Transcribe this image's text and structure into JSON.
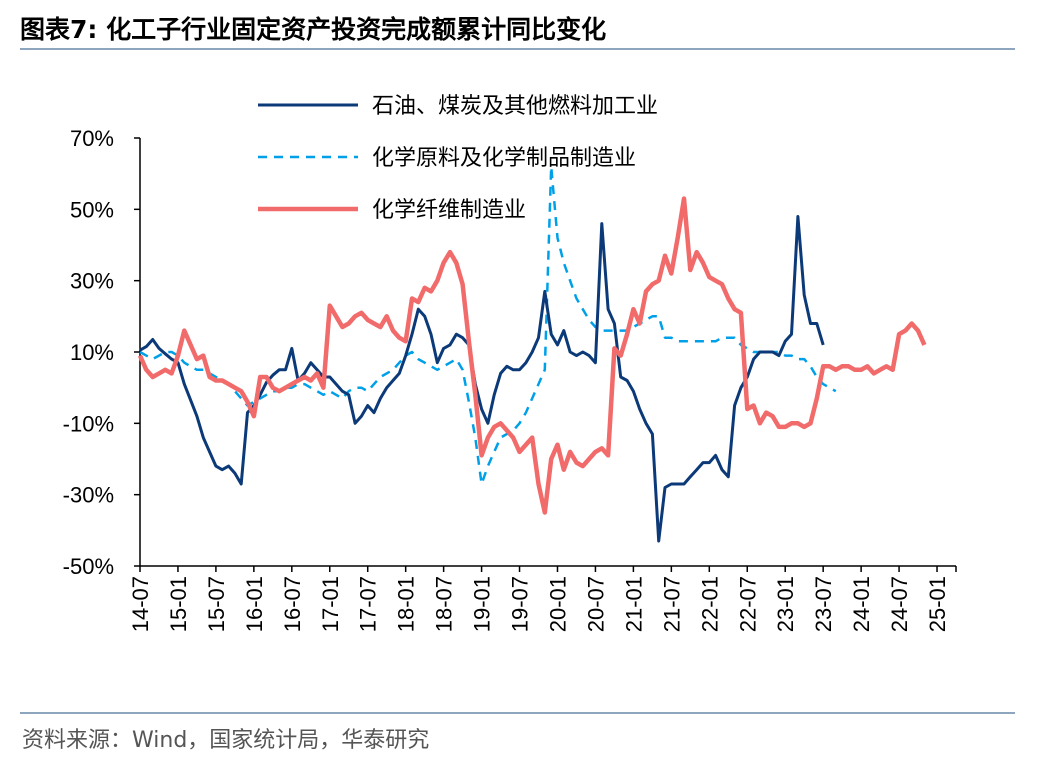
{
  "figure": {
    "title": "图表7:   化工子行业固定资产投资完成额累计同比变化",
    "source": "资料来源：Wind，国家统计局，华泰研究"
  },
  "chart_data": {
    "type": "line",
    "title": "",
    "xlabel": "",
    "ylabel": "",
    "ylim": [
      -50,
      70
    ],
    "y_ticks": [
      "70%",
      "50%",
      "30%",
      "10%",
      "-10%",
      "-30%",
      "-50%"
    ],
    "x_ticks": [
      "14-07",
      "15-01",
      "15-07",
      "16-01",
      "16-07",
      "17-01",
      "17-07",
      "18-01",
      "18-07",
      "19-01",
      "19-07",
      "20-01",
      "20-07",
      "21-01",
      "21-07",
      "22-01",
      "22-07",
      "23-01",
      "23-07",
      "24-01",
      "24-07",
      "25-01"
    ],
    "x_start": "2014-07",
    "legend_position": "top-left",
    "series": [
      {
        "name": "石油、煤炭及其他燃料加工业",
        "color": "#0c3a78",
        "style": "solid",
        "values": [
          10.5,
          11.5,
          13.5,
          11,
          9.5,
          8,
          7,
          1,
          -3.5,
          -8,
          -14,
          -18,
          -22,
          -23,
          -22,
          -24,
          -27,
          -7,
          -5,
          -2,
          1.5,
          3.5,
          5,
          5,
          11,
          2,
          4,
          7,
          5,
          3,
          3,
          1,
          -1,
          -2,
          -10,
          -8,
          -5,
          -7,
          -3,
          0,
          2,
          4,
          9,
          15,
          22,
          20,
          15,
          7,
          11,
          12,
          15,
          14,
          12,
          1,
          -6,
          -10,
          -2,
          4,
          6,
          5,
          5,
          7,
          10,
          14,
          27,
          15,
          12,
          16,
          10,
          9,
          10,
          9,
          7,
          46,
          22,
          18,
          3,
          2,
          -1,
          -6,
          -10,
          -13,
          -43,
          -28,
          -27,
          -27,
          -27,
          -25,
          -23,
          -21,
          -21,
          -19,
          -23,
          -25,
          -5,
          0,
          3,
          8,
          10,
          10,
          10,
          9,
          13,
          15,
          48,
          26,
          18,
          18,
          12
        ]
      },
      {
        "name": "化学原料及化学制品制造业",
        "color": "#00a0e9",
        "style": "dashed",
        "values": [
          10,
          9,
          8,
          9,
          10,
          10,
          9,
          7,
          6,
          5,
          5,
          4,
          3,
          2,
          1,
          -1,
          -3,
          -5,
          -4,
          -3,
          -2,
          -1,
          -1,
          0,
          0,
          1,
          1,
          0,
          -1,
          -2,
          -1,
          -2,
          -3,
          -1,
          0,
          0,
          -1,
          1,
          3,
          4,
          5,
          7,
          9,
          10,
          8,
          7,
          6,
          5,
          6,
          7,
          8,
          5,
          -4,
          -14,
          -27,
          -22,
          -18,
          -14,
          -13,
          -12,
          -10,
          -7,
          -3,
          1,
          5,
          62,
          42,
          35,
          30,
          25,
          22,
          19,
          17,
          16,
          16,
          16,
          16,
          16,
          17,
          18,
          19,
          20,
          20,
          14,
          14,
          13,
          13,
          13,
          13,
          13,
          13,
          13,
          14,
          14,
          14,
          12,
          11,
          10,
          10,
          10,
          10,
          10,
          9,
          9,
          8,
          8,
          6,
          3,
          1,
          0,
          -1
        ]
      },
      {
        "name": "化学纤维制造业",
        "color": "#f26b6b",
        "style": "solid",
        "values": [
          9,
          5,
          3,
          4,
          5,
          4,
          9,
          16,
          12,
          8,
          9,
          3,
          2,
          2,
          1,
          0,
          -1,
          -4,
          -8,
          3,
          3,
          0,
          -1,
          0,
          1,
          2,
          3,
          2,
          4,
          0,
          23,
          20,
          17,
          18,
          20,
          21,
          19,
          18,
          17,
          20,
          16,
          14,
          13,
          25,
          24,
          28,
          27,
          30,
          35,
          38,
          35,
          29,
          13,
          -2,
          -19,
          -14,
          -11,
          -10,
          -12,
          -14,
          -18,
          -16,
          -14,
          -27,
          -35,
          -20,
          -16,
          -23,
          -18,
          -21,
          -22,
          -20,
          -18,
          -17,
          -19,
          11,
          9,
          15,
          22,
          18,
          27,
          29,
          30,
          37,
          32,
          42,
          53,
          33,
          38,
          35,
          31,
          30,
          29,
          25,
          22,
          21,
          -6,
          -5,
          -10,
          -7,
          -8,
          -11,
          -11,
          -10,
          -10,
          -11,
          -10,
          -3,
          6,
          6,
          5,
          6,
          6,
          5,
          5,
          6,
          4,
          5,
          6,
          5,
          15,
          16,
          18,
          16,
          12
        ]
      }
    ]
  }
}
